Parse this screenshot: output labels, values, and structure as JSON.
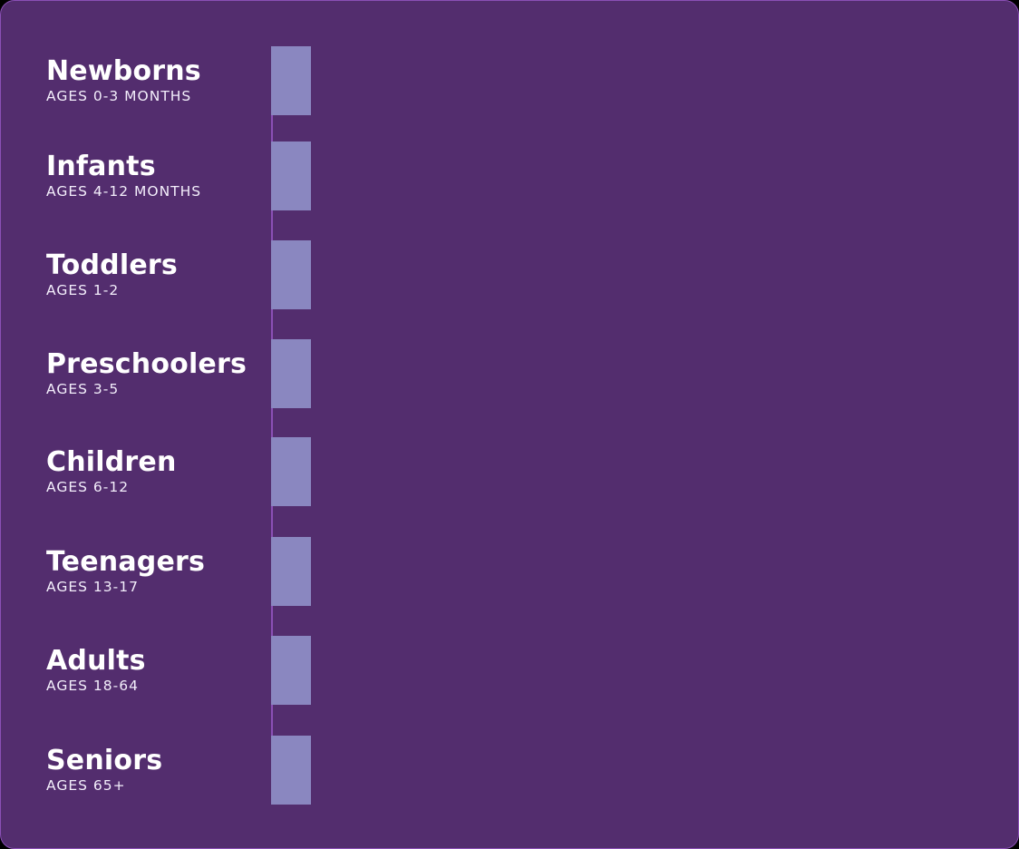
{
  "colors": {
    "panel_background": "#532d6e",
    "panel_border": "#8a4fb5",
    "timeline_line": "#8a4fb5",
    "marker_block": "#8a87c0",
    "text": "#ffffff"
  },
  "groups": [
    {
      "title": "Newborns",
      "ages": "AGES 0-3 MONTHS"
    },
    {
      "title": "Infants",
      "ages": "AGES 4-12 MONTHS"
    },
    {
      "title": "Toddlers",
      "ages": "AGES 1-2"
    },
    {
      "title": "Preschoolers",
      "ages": "AGES 3-5"
    },
    {
      "title": "Children",
      "ages": "AGES 6-12"
    },
    {
      "title": "Teenagers",
      "ages": "AGES 13-17"
    },
    {
      "title": "Adults",
      "ages": "AGES 18-64"
    },
    {
      "title": "Seniors",
      "ages": "AGES 65+"
    }
  ]
}
